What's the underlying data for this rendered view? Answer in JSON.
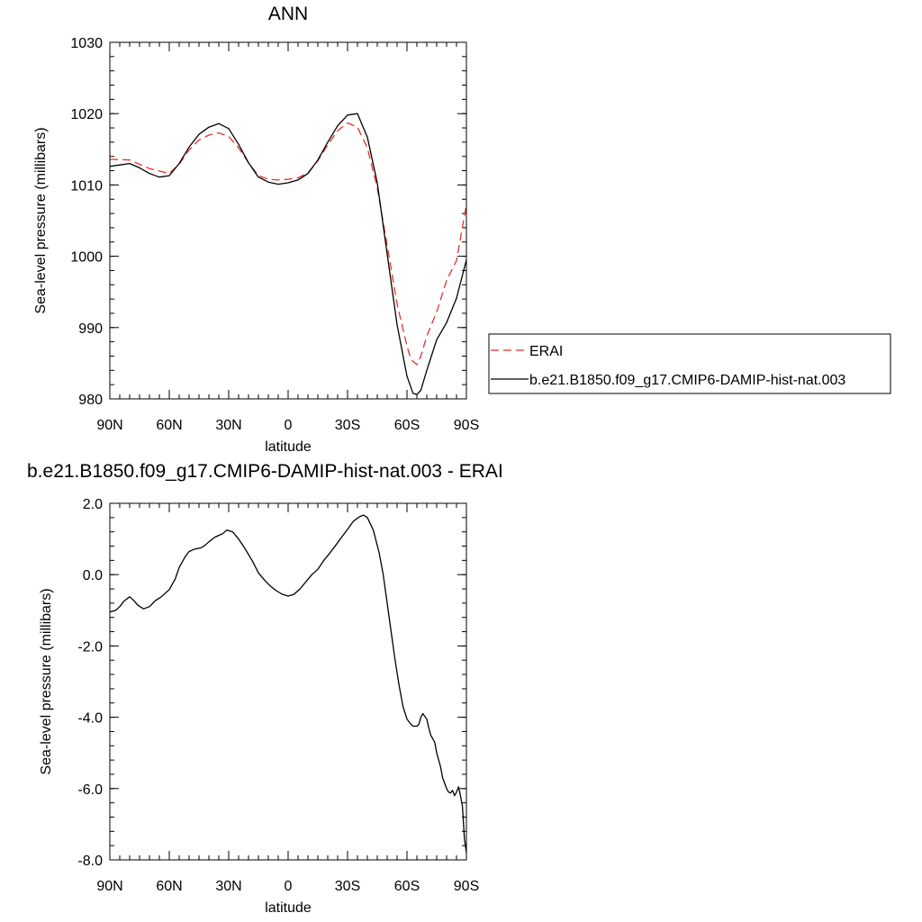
{
  "chart_data": [
    {
      "type": "line",
      "title": "ANN",
      "xlabel": "latitude",
      "ylabel": "Sea-level pressure (millibars)",
      "xlim": [
        90,
        -90
      ],
      "ylim": [
        980,
        1030
      ],
      "x_ticks": [
        90,
        60,
        30,
        0,
        -30,
        -60,
        -90
      ],
      "x_tick_labels": [
        "90N",
        "60N",
        "30N",
        "0",
        "30S",
        "60S",
        "90S"
      ],
      "y_ticks": [
        980,
        990,
        1000,
        1010,
        1020,
        1030
      ],
      "y_tick_labels": [
        "980",
        "990",
        "1000",
        "1010",
        "1020",
        "1030"
      ],
      "legend_position": "right",
      "series": [
        {
          "name": "ERAI",
          "color": "#e8302a",
          "dash": "dashed",
          "x": [
            90,
            80,
            70,
            60,
            55,
            50,
            45,
            40,
            35,
            30,
            25,
            20,
            15,
            10,
            5,
            0,
            -5,
            -10,
            -15,
            -20,
            -25,
            -30,
            -35,
            -40,
            -45,
            -50,
            -55,
            -60,
            -62,
            -65,
            -67,
            -70,
            -75,
            -80,
            -85,
            -90
          ],
          "values": [
            1013.6,
            1013.5,
            1012.3,
            1011.6,
            1012.9,
            1014.9,
            1016.3,
            1017.0,
            1017.3,
            1016.8,
            1015.2,
            1013.1,
            1011.3,
            1010.8,
            1010.7,
            1010.8,
            1011.0,
            1011.7,
            1013.4,
            1015.6,
            1017.6,
            1018.7,
            1018.1,
            1015.2,
            1009.6,
            1001.5,
            993.3,
            987.4,
            985.5,
            984.8,
            986.0,
            988.8,
            992.2,
            996.6,
            999.4,
            1007.2
          ]
        },
        {
          "name": "b.e21.B1850.f09_g17.CMIP6-DAMIP-hist-nat.003",
          "color": "#000000",
          "dash": "solid",
          "x": [
            90,
            85,
            80,
            75,
            70,
            65,
            60,
            55,
            50,
            45,
            40,
            35,
            30,
            25,
            20,
            15,
            10,
            5,
            0,
            -5,
            -10,
            -15,
            -20,
            -25,
            -30,
            -35,
            -40,
            -45,
            -50,
            -55,
            -60,
            -63,
            -65,
            -67,
            -70,
            -75,
            -80,
            -85,
            -90
          ],
          "values": [
            1012.6,
            1012.8,
            1013.0,
            1012.4,
            1011.6,
            1011.1,
            1011.3,
            1013.0,
            1015.3,
            1017.1,
            1018.1,
            1018.6,
            1017.9,
            1015.7,
            1013.1,
            1011.1,
            1010.4,
            1010.1,
            1010.3,
            1010.7,
            1011.6,
            1013.5,
            1016.0,
            1018.3,
            1019.8,
            1020.0,
            1016.7,
            1010.3,
            1000.3,
            990.4,
            983.2,
            980.8,
            980.6,
            981.2,
            984.0,
            988.3,
            990.7,
            994.1,
            999.5
          ]
        }
      ]
    },
    {
      "type": "line",
      "title": "b.e21.B1850.f09_g17.CMIP6-DAMIP-hist-nat.003 - ERAI",
      "xlabel": "latitude",
      "ylabel": "Sea-level pressure (millibars)",
      "xlim": [
        90,
        -90
      ],
      "ylim": [
        -8.0,
        2.0
      ],
      "x_ticks": [
        90,
        60,
        30,
        0,
        -30,
        -60,
        -90
      ],
      "x_tick_labels": [
        "90N",
        "60N",
        "30N",
        "0",
        "30S",
        "60S",
        "90S"
      ],
      "y_ticks": [
        2.0,
        0.0,
        -2.0,
        -4.0,
        -6.0,
        -8.0
      ],
      "y_tick_labels": [
        "2.0",
        "0.0",
        "-2.0",
        "-4.0",
        "-6.0",
        "-8.0"
      ],
      "series": [
        {
          "color": "#000000",
          "dash": "solid",
          "x": [
            90,
            87,
            85,
            83,
            80,
            78,
            76,
            73,
            70,
            67,
            64,
            60,
            57,
            55,
            52,
            50,
            47,
            44,
            42,
            40,
            37,
            35,
            33,
            31,
            28,
            25,
            22,
            18,
            15,
            12,
            9,
            6,
            3,
            0,
            -3,
            -6,
            -9,
            -12,
            -15,
            -18,
            -21,
            -24,
            -27,
            -30,
            -33,
            -36,
            -38,
            -40,
            -43,
            -46,
            -48,
            -50,
            -52,
            -54,
            -56,
            -58,
            -60,
            -62,
            -63,
            -65,
            -66,
            -67,
            -68,
            -70,
            -71,
            -72,
            -74,
            -75,
            -77,
            -78,
            -79,
            -80,
            -81,
            -82,
            -83,
            -84,
            -85,
            -86,
            -87,
            -88,
            -89,
            -90
          ],
          "values": [
            -1.05,
            -1.0,
            -0.9,
            -0.75,
            -0.62,
            -0.72,
            -0.85,
            -0.96,
            -0.9,
            -0.73,
            -0.62,
            -0.42,
            -0.12,
            0.2,
            0.5,
            0.65,
            0.72,
            0.75,
            0.82,
            0.92,
            1.05,
            1.1,
            1.15,
            1.25,
            1.2,
            1.0,
            0.75,
            0.38,
            0.05,
            -0.15,
            -0.32,
            -0.45,
            -0.55,
            -0.6,
            -0.55,
            -0.4,
            -0.2,
            0.0,
            0.15,
            0.4,
            0.6,
            0.82,
            1.05,
            1.27,
            1.5,
            1.62,
            1.67,
            1.6,
            1.25,
            0.6,
            0.0,
            -0.8,
            -1.6,
            -2.4,
            -3.1,
            -3.7,
            -4.05,
            -4.2,
            -4.25,
            -4.25,
            -4.2,
            -4.0,
            -3.9,
            -4.05,
            -4.3,
            -4.5,
            -4.7,
            -5.0,
            -5.4,
            -5.7,
            -5.85,
            -6.0,
            -6.1,
            -6.12,
            -6.05,
            -6.2,
            -6.1,
            -5.95,
            -6.2,
            -6.5,
            -7.4,
            -7.8
          ]
        }
      ]
    }
  ]
}
